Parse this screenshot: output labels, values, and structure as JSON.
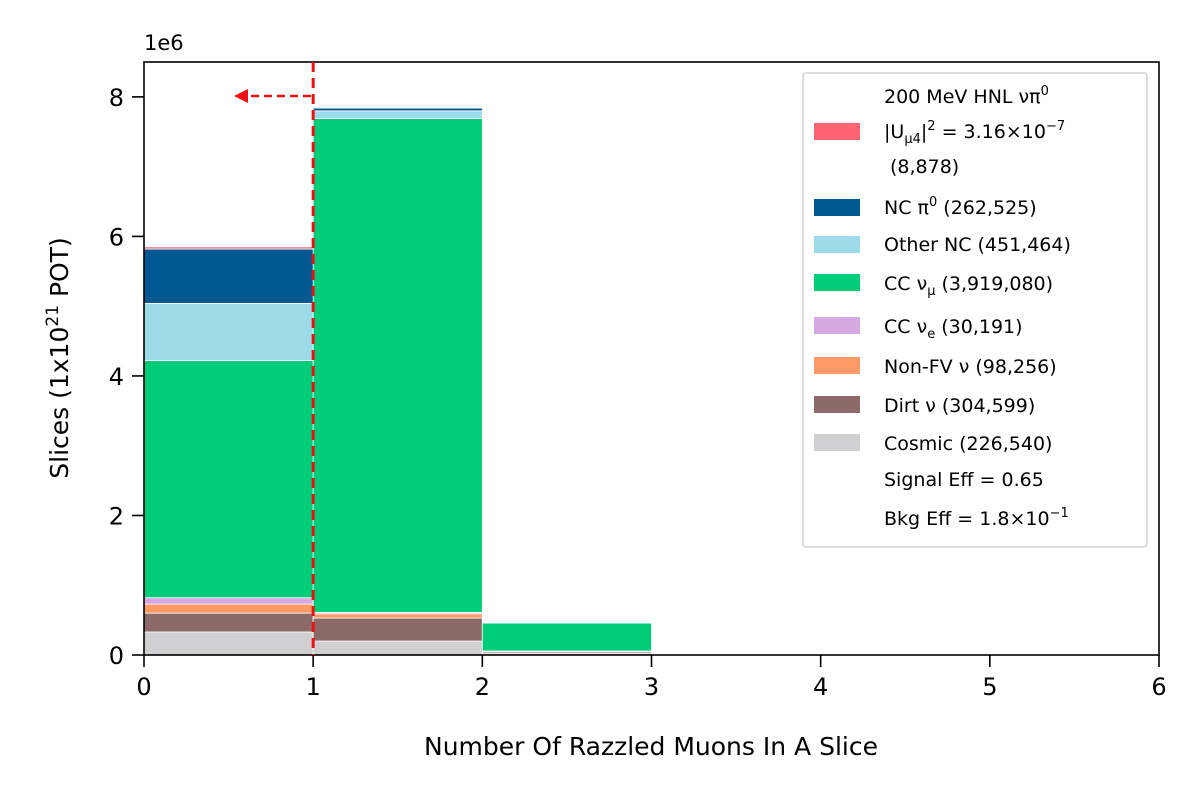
{
  "chart_data": {
    "type": "bar",
    "stacked": true,
    "title": "",
    "xlabel": "Number Of Razzled Muons In A Slice",
    "ylabel_parts": [
      "Slices (1x10",
      "21",
      " POT)"
    ],
    "y_offset_text": "1e6",
    "xlim": [
      0,
      6
    ],
    "ylim": [
      0,
      8500000
    ],
    "x_ticks": [
      "0",
      "1",
      "2",
      "3",
      "4",
      "5",
      "6"
    ],
    "y_ticks": [
      "0",
      "2",
      "4",
      "6",
      "8"
    ],
    "bin_edges": [
      0,
      1,
      2,
      3
    ],
    "cut": {
      "x": 1,
      "direction": "left"
    },
    "grid": false,
    "legend_placement": "top-right",
    "series": [
      {
        "name": "Cosmic (226,540)",
        "color": "#d0d0d2",
        "values": [
          330000,
          200000,
          30000
        ]
      },
      {
        "name": "Dirt ν (304,599)",
        "color": "#8b6a69",
        "values": [
          270000,
          330000,
          20000
        ]
      },
      {
        "name": "Non-FV ν (98,256)",
        "color": "#ff9966",
        "values": [
          130000,
          60000,
          5000
        ]
      },
      {
        "name": "CC ν_e (30,191)",
        "color": "#d6a8e2",
        "values": [
          90000,
          20000,
          2000
        ]
      },
      {
        "name": "CC ν_μ (3,919,080)",
        "color": "#00cc7a",
        "values": [
          3400000,
          7080000,
          400000
        ]
      },
      {
        "name": "Other NC (451,464)",
        "color": "#9cdbe8",
        "values": [
          820000,
          110000,
          0
        ]
      },
      {
        "name": "NC π^0 (262,525)",
        "color": "#005891",
        "values": [
          780000,
          40000,
          0
        ]
      },
      {
        "name": "200 MeV HNL νπ^0 |U_μ4|^2 = 3.16×10^-7 (8,878)",
        "color": "#ff6473",
        "values": [
          30000,
          5000,
          0
        ]
      }
    ]
  },
  "legend": {
    "hnl_lines": [
      "200 MeV HNL νπ",
      "|U",
      "μ4",
      "|",
      "2",
      " = 3.16×10",
      "−7",
      "(8,878)"
    ],
    "hnl_sup0": "0",
    "nc_pi0": [
      "NC π",
      "0",
      " (262,525)"
    ],
    "other_nc": "Other NC (451,464)",
    "cc_numu": [
      "CC ν",
      "μ",
      " (3,919,080)"
    ],
    "cc_nue": [
      "CC ν",
      "e",
      " (30,191)"
    ],
    "non_fv": "Non-FV ν (98,256)",
    "dirt": "Dirt ν (304,599)",
    "cosmic": "Cosmic (226,540)",
    "signal_eff": "Signal Eff = 0.65",
    "bkg_eff": [
      "Bkg Eff = 1.8×10",
      "−1"
    ]
  },
  "colors": {
    "hnl": "#ff6473",
    "nc_pi0": "#005891",
    "other_nc": "#9cdbe8",
    "cc_numu": "#00cc7a",
    "cc_nue": "#d6a8e2",
    "non_fv": "#ff9966",
    "dirt": "#8b6a69",
    "cosmic": "#d0d0d2",
    "cut_line": "#ee1111"
  }
}
